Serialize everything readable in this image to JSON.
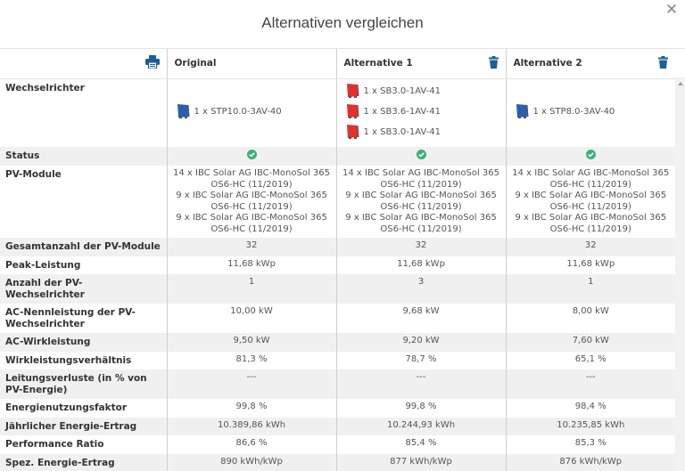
{
  "modal": {
    "title": "Alternativen vergleichen",
    "close_icon": "close-icon"
  },
  "header": {
    "print_icon": "print-icon",
    "columns": [
      {
        "label": "Original",
        "deletable": false
      },
      {
        "label": "Alternative 1",
        "deletable": true,
        "delete_icon": "trash-icon"
      },
      {
        "label": "Alternative 2",
        "deletable": true,
        "delete_icon": "trash-icon"
      }
    ]
  },
  "colors": {
    "accent": "#1f5f99",
    "inverter_blue": "#2d5ea8",
    "inverter_red": "#e0312e",
    "status_ok": "#3bb07a",
    "row_alt": "#f0f0f0"
  },
  "rows": {
    "inverters": {
      "label": "Wechselrichter",
      "values": [
        [
          {
            "text": "1 x STP10.0-3AV-40",
            "color": "blue"
          }
        ],
        [
          {
            "text": "1 x SB3.0-1AV-41",
            "color": "red"
          },
          {
            "text": "1 x SB3.6-1AV-41",
            "color": "red"
          },
          {
            "text": "1 x SB3.0-1AV-41",
            "color": "red"
          }
        ],
        [
          {
            "text": "1 x STP8.0-3AV-40",
            "color": "blue"
          }
        ]
      ]
    },
    "status": {
      "label": "Status",
      "values": [
        "ok",
        "ok",
        "ok"
      ]
    },
    "pv_modules": {
      "label": "PV-Module",
      "values": [
        [
          "14 x IBC Solar AG IBC-MonoSol 365 OS6-HC (11/2019)",
          "9 x IBC Solar AG IBC-MonoSol 365 OS6-HC (11/2019)",
          "9 x IBC Solar AG IBC-MonoSol 365 OS6-HC (11/2019)"
        ],
        [
          "14 x IBC Solar AG IBC-MonoSol 365 OS6-HC (11/2019)",
          "9 x IBC Solar AG IBC-MonoSol 365 OS6-HC (11/2019)",
          "9 x IBC Solar AG IBC-MonoSol 365 OS6-HC (11/2019)"
        ],
        [
          "14 x IBC Solar AG IBC-MonoSol 365 OS6-HC (11/2019)",
          "9 x IBC Solar AG IBC-MonoSol 365 OS6-HC (11/2019)",
          "9 x IBC Solar AG IBC-MonoSol 365 OS6-HC (11/2019)"
        ]
      ]
    },
    "simple": [
      {
        "key": "total_modules",
        "label": "Gesamtanzahl der PV-Module",
        "values": [
          "32",
          "32",
          "32"
        ]
      },
      {
        "key": "peak_power",
        "label": "Peak-Leistung",
        "values": [
          "11,68 kWp",
          "11,68 kWp",
          "11,68 kWp"
        ]
      },
      {
        "key": "inverter_count",
        "label": "Anzahl der PV-Wechselrichter",
        "values": [
          "1",
          "3",
          "1"
        ]
      },
      {
        "key": "ac_nominal",
        "label": "AC-Nennleistung der PV-Wechselrichter",
        "values": [
          "10,00 kW",
          "9,68 kW",
          "8,00 kW"
        ]
      },
      {
        "key": "ac_active",
        "label": "AC-Wirkleistung",
        "values": [
          "9,50 kW",
          "9,20 kW",
          "7,60 kW"
        ]
      },
      {
        "key": "active_ratio",
        "label": "Wirkleistungsverhältnis",
        "values": [
          "81,3 %",
          "78,7 %",
          "65,1 %"
        ]
      },
      {
        "key": "line_losses",
        "label": "Leitungsverluste (in % von PV-Energie)",
        "values": [
          "---",
          "---",
          "---"
        ]
      },
      {
        "key": "energy_usage",
        "label": "Energienutzungsfaktor",
        "values": [
          "99,8 %",
          "99,8 %",
          "98,4 %"
        ]
      },
      {
        "key": "annual_yield",
        "label": "Jährlicher Energie-Ertrag",
        "values": [
          "10.389,86 kWh",
          "10.244,93 kWh",
          "10.235,85 kWh"
        ]
      },
      {
        "key": "performance_ratio",
        "label": "Performance Ratio",
        "values": [
          "86,6 %",
          "85,4 %",
          "85,3 %"
        ]
      },
      {
        "key": "specific_yield",
        "label": "Spez. Energie-Ertrag",
        "values": [
          "890 kWh/kWp",
          "877 kWh/kWp",
          "876 kWh/kWp"
        ]
      }
    ]
  }
}
